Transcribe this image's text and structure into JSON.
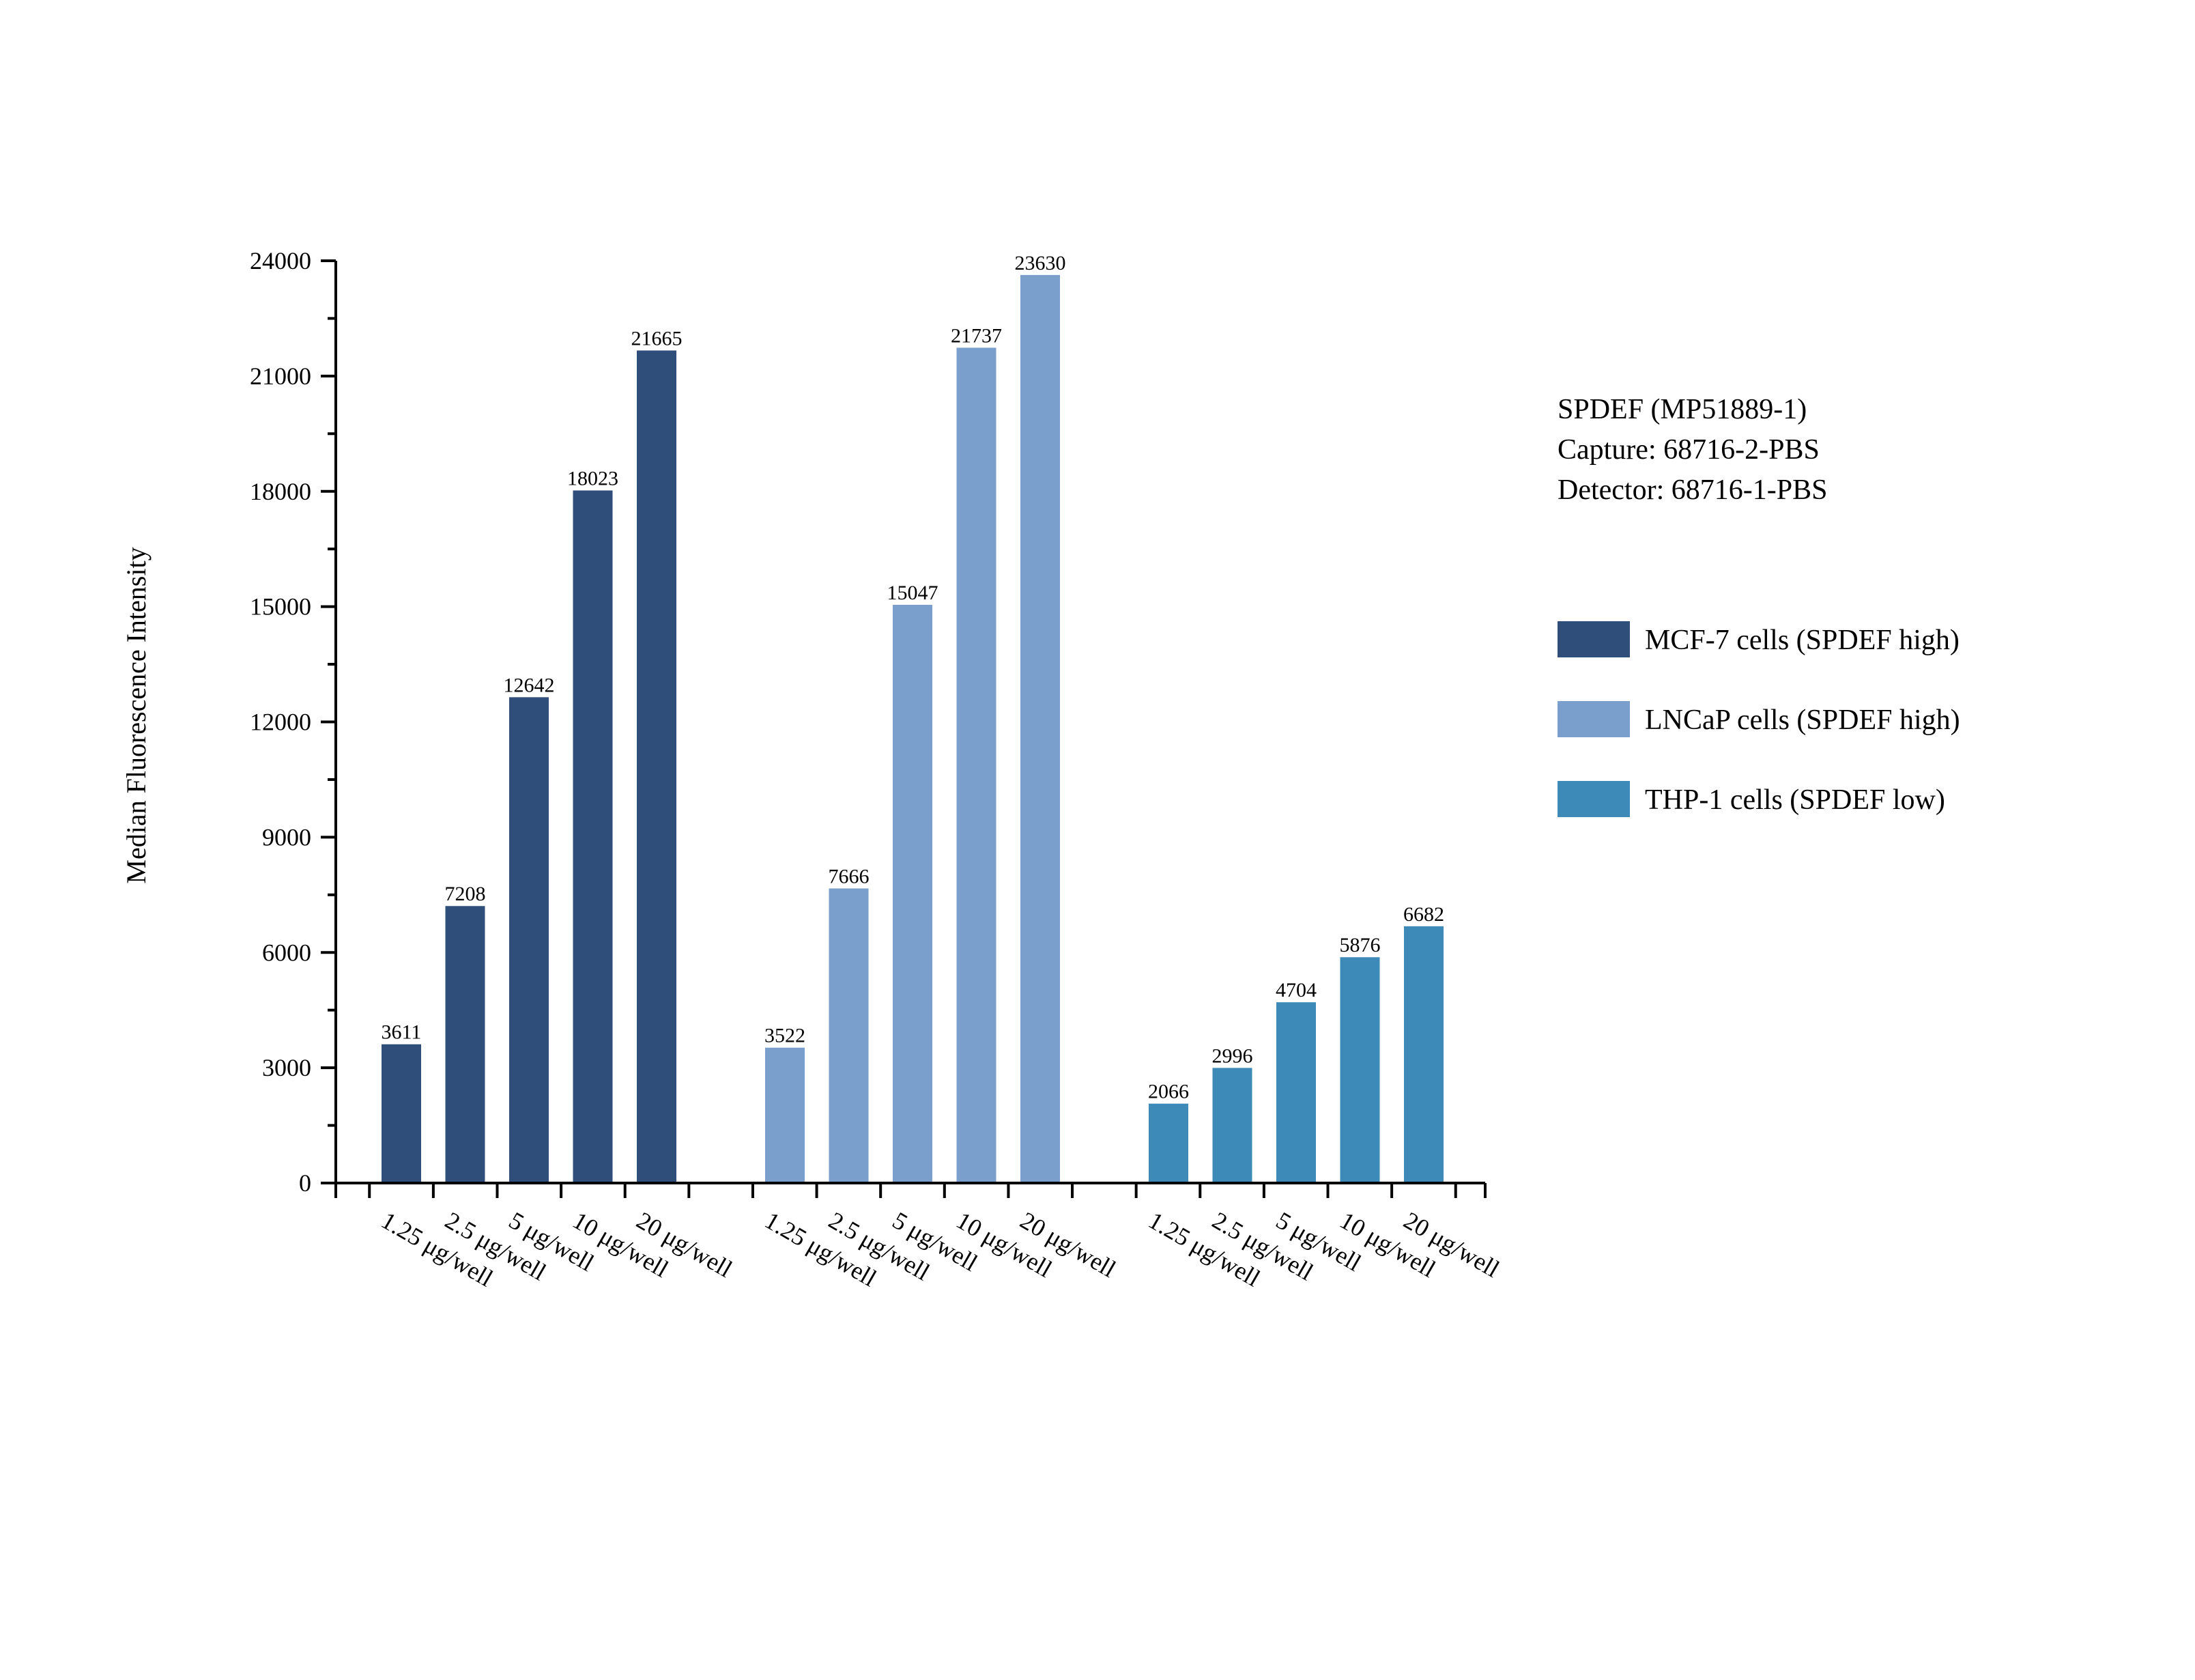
{
  "chart_data": {
    "type": "bar",
    "title": "",
    "xlabel": "",
    "ylabel": "Median Fluorescence Intensity",
    "ylim": [
      0,
      24000
    ],
    "yticks": [
      0,
      3000,
      6000,
      9000,
      12000,
      15000,
      18000,
      21000,
      24000
    ],
    "grid": false,
    "legend_position": "right",
    "categories": [
      "1.25 μg/well",
      "2.5 μg/well",
      "5 μg/well",
      "10 μg/well",
      "20 μg/well"
    ],
    "series": [
      {
        "name": "MCF-7 cells (SPDEF high)",
        "color": "#2f4f7a",
        "values": [
          3611,
          7208,
          12642,
          18023,
          21665
        ]
      },
      {
        "name": "LNCaP cells (SPDEF high)",
        "color": "#7b9fcd",
        "values": [
          3522,
          7666,
          15047,
          21737,
          23630
        ]
      },
      {
        "name": "THP-1 cells (SPDEF low)",
        "color": "#3d8ab8",
        "values": [
          2066,
          2996,
          4704,
          5876,
          6682
        ]
      }
    ],
    "annotation": [
      "SPDEF (MP51889-1)",
      "Capture: 68716-2-PBS",
      "Detector: 68716-1-PBS"
    ]
  }
}
